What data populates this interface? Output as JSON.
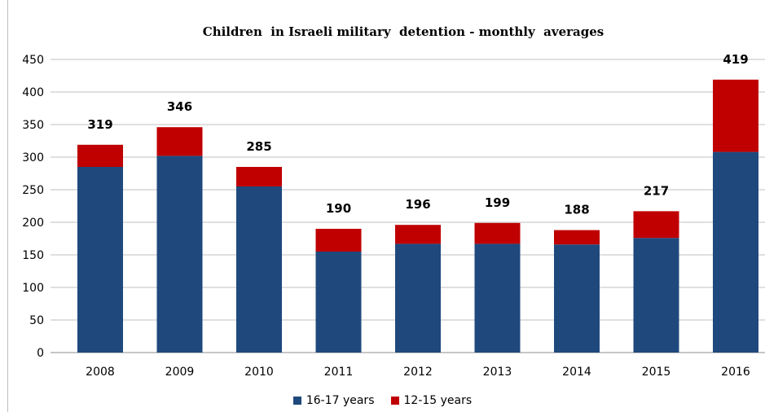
{
  "chart_data": {
    "type": "bar",
    "stacked": true,
    "title": "Children  in Israeli military  detention - monthly  averages",
    "xlabel": "",
    "ylabel": "",
    "categories": [
      "2008",
      "2009",
      "2010",
      "2011",
      "2012",
      "2013",
      "2014",
      "2015",
      "2016"
    ],
    "series": [
      {
        "name": "16-17 years",
        "color": "#1F497D",
        "values": [
          285,
          302,
          255,
          155,
          167,
          167,
          166,
          176,
          308
        ]
      },
      {
        "name": "12-15 years",
        "color": "#C00000",
        "values": [
          34,
          44,
          30,
          35,
          29,
          32,
          22,
          41,
          111
        ]
      }
    ],
    "totals": [
      319,
      346,
      285,
      190,
      196,
      199,
      188,
      217,
      419
    ],
    "ylim": [
      0,
      450
    ],
    "yticks": [
      0,
      50,
      100,
      150,
      200,
      250,
      300,
      350,
      400,
      450
    ],
    "grid": true,
    "legend": "bottom"
  }
}
